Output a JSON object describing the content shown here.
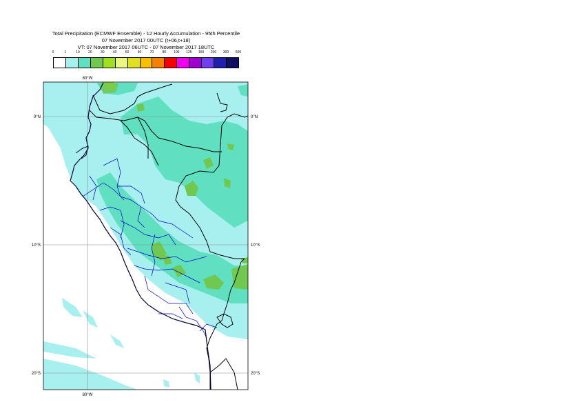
{
  "title": {
    "line1": "Total Precipitation (ECMWF Ensemble) - 12 Hourly Accumulation - 95th Percentile",
    "line2": "07 November 2017 00UTC (t+06,t+18)",
    "line3": "VT: 07 November 2017 06UTC - 07 November 2017 18UTC"
  },
  "legend": {
    "thresholds": [
      "0",
      "1",
      "10",
      "20",
      "30",
      "40",
      "50",
      "60",
      "70",
      "80",
      "100",
      "125",
      "150",
      "200",
      "300",
      "500"
    ],
    "colors": [
      "#ffffff",
      "#a8f0f0",
      "#60e0c0",
      "#70c850",
      "#a0e020",
      "#e8f880",
      "#e0e020",
      "#f8c000",
      "#f88000",
      "#f80000",
      "#f000f0",
      "#a000d0",
      "#7040f0",
      "#2020b0",
      "#101060"
    ]
  },
  "axes": {
    "top_lon": "80°W",
    "bottom_lon": "80°W",
    "lat_left": [
      "0°N",
      "10°S",
      "20°S"
    ],
    "lat_right": [
      "0°N",
      "10°S",
      "20°S"
    ]
  },
  "map_colors": {
    "ocean": "#ffffff",
    "light": "#a8f0f0",
    "medium": "#60e0c0",
    "green": "#70c850",
    "lime": "#a0e020",
    "coast": "#000033",
    "borders": "#000000",
    "regions": "#0000cc",
    "grid": "#888888"
  }
}
